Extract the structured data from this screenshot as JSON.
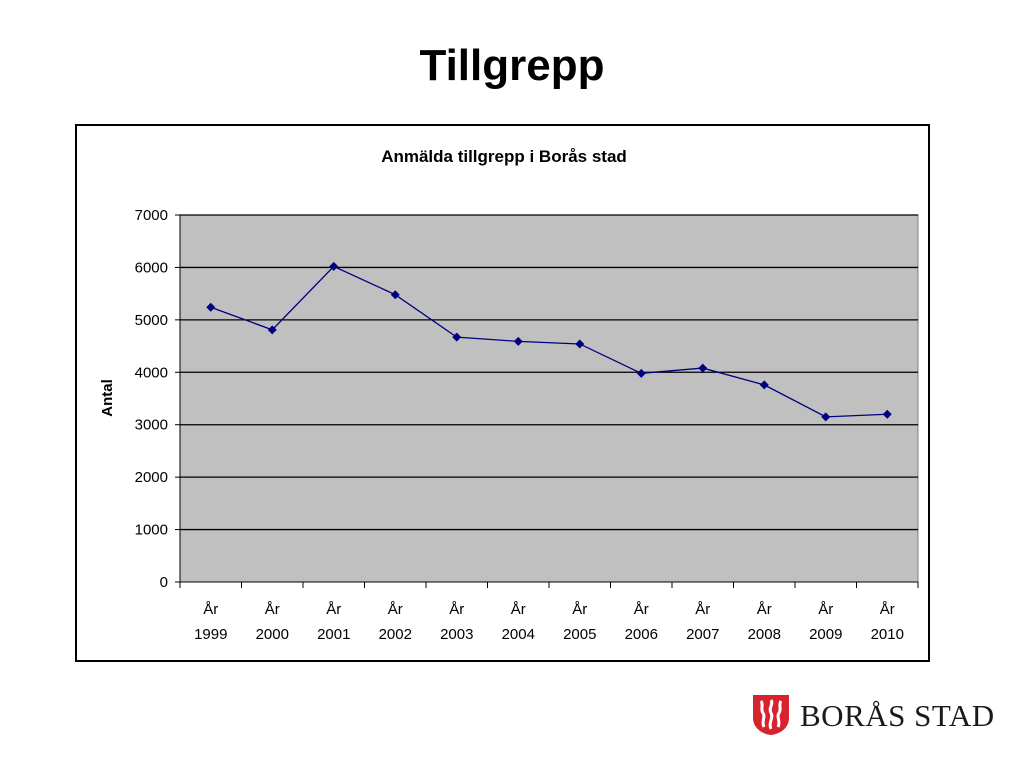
{
  "slide": {
    "title": "Tillgrepp"
  },
  "logo": {
    "text": "BORÅS STAD"
  },
  "colors": {
    "plot_area": "#c0c0c0",
    "series": "#000080",
    "gridline": "#000000",
    "logo_red": "#d7232e"
  },
  "chart_data": {
    "type": "line",
    "title": "Anmälda tillgrepp i Borås stad",
    "xlabel": "",
    "ylabel": "Antal",
    "ylim": [
      0,
      7000
    ],
    "yticks": [
      "0",
      "1000",
      "2000",
      "3000",
      "4000",
      "5000",
      "6000",
      "7000"
    ],
    "grid": true,
    "legend": "none",
    "categories": [
      [
        "År",
        "1999"
      ],
      [
        "År",
        "2000"
      ],
      [
        "År",
        "2001"
      ],
      [
        "År",
        "2002"
      ],
      [
        "År",
        "2003"
      ],
      [
        "År",
        "2004"
      ],
      [
        "År",
        "2005"
      ],
      [
        "År",
        "2006"
      ],
      [
        "År",
        "2007"
      ],
      [
        "År",
        "2008"
      ],
      [
        "År",
        "2009"
      ],
      [
        "År",
        "2010"
      ]
    ],
    "series": [
      {
        "values": [
          5240,
          4810,
          6020,
          5480,
          4670,
          4590,
          4540,
          3980,
          4080,
          3760,
          3150,
          3200
        ],
        "marker": "diamond"
      }
    ]
  }
}
